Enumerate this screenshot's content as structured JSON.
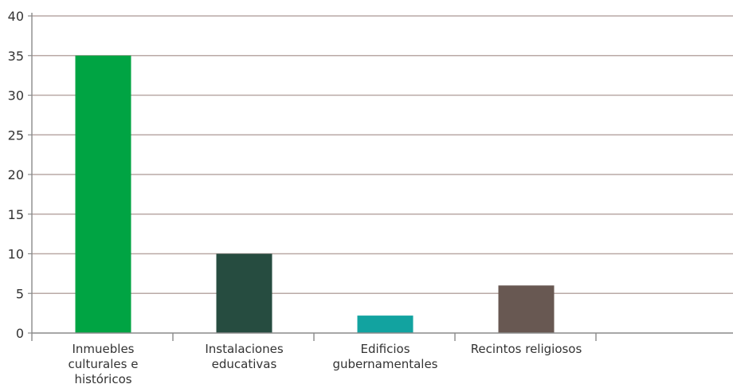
{
  "chart_data": {
    "type": "bar",
    "categories": [
      [
        "Inmuebles",
        "culturales e",
        "históricos"
      ],
      [
        "Instalaciones",
        "educativas"
      ],
      [
        "Edificios",
        "gubernamentales"
      ],
      [
        "Recintos religiosos"
      ]
    ],
    "values": [
      35,
      10,
      2.2,
      6
    ],
    "bar_colors": [
      "#00a443",
      "#264c40",
      "#12a3a0",
      "#685852"
    ],
    "ylim": [
      0,
      40
    ],
    "yticks": [
      0,
      5,
      10,
      15,
      20,
      25,
      30,
      35,
      40
    ],
    "grid": true,
    "grid_color": "#b9a9a6",
    "axis_color": "#8a8a8a",
    "title": "",
    "xlabel": "",
    "ylabel": ""
  }
}
